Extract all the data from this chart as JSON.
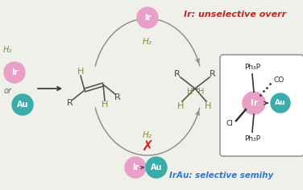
{
  "bg_color": "#f0f0ea",
  "ir_color": "#e8a0c8",
  "au_color": "#3aacaa",
  "h2_color": "#8b8b30",
  "bond_color": "#555555",
  "red_color": "#cc2222",
  "text_red": "#cc2222",
  "text_blue": "#3377cc",
  "title_text": "Ir: unselective overr",
  "subtitle_text": "IrAu: selective semihy",
  "ir_label": "Ir",
  "au_label": "Au",
  "h2_label": "H₂",
  "or_label": "or",
  "arc_color": "#888888",
  "figw": 3.76,
  "figh": 2.36,
  "dpi": 100
}
